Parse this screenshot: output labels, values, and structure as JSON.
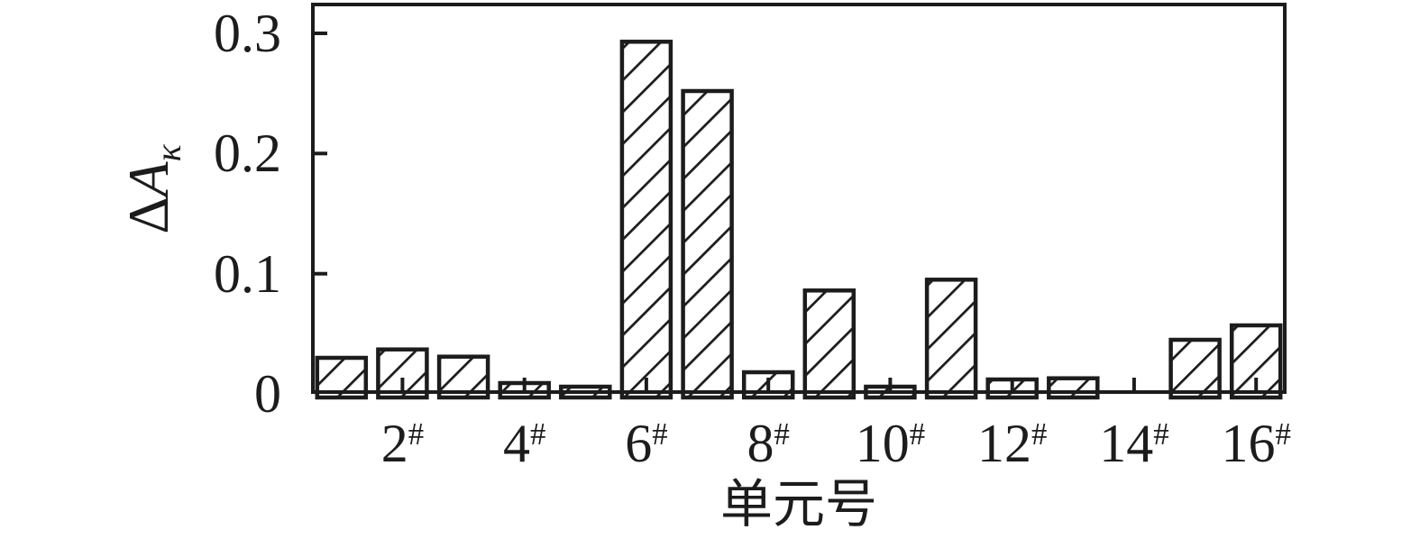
{
  "figure": {
    "background": "#ffffff",
    "ink_color": "#1c1c1c"
  },
  "chart_data": {
    "type": "bar",
    "title": "",
    "xlabel": "单元号",
    "ylabel": "ΔAκ",
    "ylabel_parts": {
      "delta": "Δ",
      "base": "A",
      "subscript": "κ"
    },
    "categories": [
      1,
      2,
      3,
      4,
      5,
      6,
      7,
      8,
      9,
      10,
      11,
      12,
      13,
      14,
      15,
      16
    ],
    "values": [
      0.03,
      0.037,
      0.031,
      0.009,
      0.006,
      0.293,
      0.252,
      0.018,
      0.086,
      0.006,
      0.095,
      0.012,
      0.013,
      0,
      0.045,
      0.057
    ],
    "x_tick_labels": [
      {
        "num": "2",
        "suffix": "#"
      },
      {
        "num": "4",
        "suffix": "#"
      },
      {
        "num": "6",
        "suffix": "#"
      },
      {
        "num": "8",
        "suffix": "#"
      },
      {
        "num": "10",
        "suffix": "#"
      },
      {
        "num": "12",
        "suffix": "#"
      },
      {
        "num": "14",
        "suffix": "#"
      },
      {
        "num": "16",
        "suffix": "#"
      }
    ],
    "y_tick_labels": [
      {
        "label": "0",
        "value": 0
      },
      {
        "label": "0.1",
        "value": 0.1
      },
      {
        "label": "0.2",
        "value": 0.2
      },
      {
        "label": "0.3",
        "value": 0.3
      }
    ],
    "ylim": [
      0,
      0.326
    ],
    "grid": false,
    "legend": null,
    "bar_fill": "white-with-diagonal-hatch",
    "bar_edge_color": "#1c1c1c"
  }
}
